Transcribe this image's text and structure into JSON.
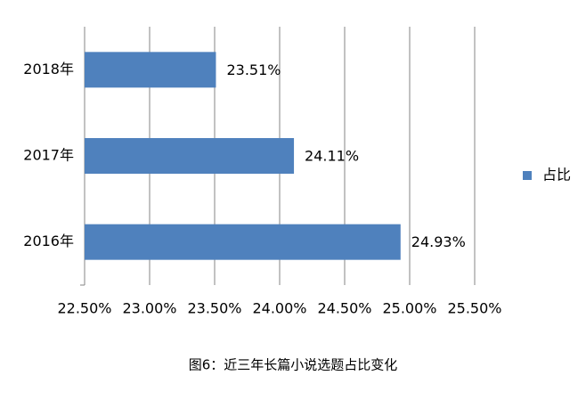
{
  "chart_data": {
    "type": "barh",
    "title": "图6：近三年长篇小说选题占比变化",
    "categories": [
      "2016年",
      "2017年",
      "2018年"
    ],
    "series": [
      {
        "name": "占比",
        "color": "#4f81bd",
        "values": [
          24.93,
          24.11,
          23.51
        ],
        "value_labels": [
          "24.93%",
          "24.11%",
          "23.51%"
        ]
      }
    ],
    "xlim": [
      22.5,
      25.5
    ],
    "xticks": [
      {
        "value": 22.5,
        "label": "22.50%"
      },
      {
        "value": 23.0,
        "label": "23.00%"
      },
      {
        "value": 23.5,
        "label": "23.50%"
      },
      {
        "value": 24.0,
        "label": "24.00%"
      },
      {
        "value": 24.5,
        "label": "24.50%"
      },
      {
        "value": 25.0,
        "label": "25.00%"
      },
      {
        "value": 25.5,
        "label": "25.50%"
      }
    ],
    "grid": true,
    "legend": "right"
  }
}
